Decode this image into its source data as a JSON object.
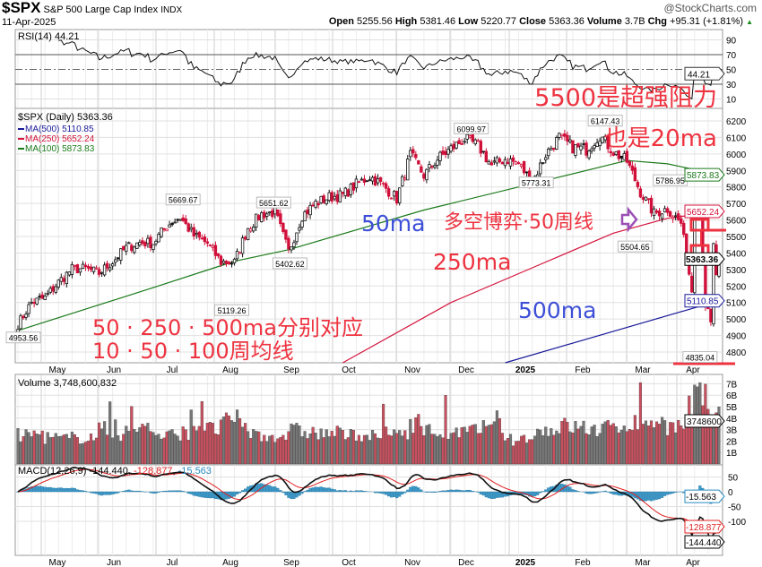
{
  "header": {
    "symbol": "$SPX",
    "name": "S&P 500 Large Cap Index",
    "exchange": "INDX",
    "brand": "@StockCharts.com",
    "date": "11-Apr-2025",
    "open_label": "Open",
    "open": "5255.56",
    "high_label": "High",
    "high": "5381.46",
    "low_label": "Low",
    "low": "5220.77",
    "close_label": "Close",
    "close": "5363.36",
    "volume_label": "Volume",
    "volume": "3.7B",
    "chg_label": "Chg",
    "chg": "+95.31 (+1.81%)"
  },
  "chart_data": {
    "type": "candlestick",
    "title": "$SPX (Daily) 5363.36",
    "x_tick_labels": [
      "May",
      "Jun",
      "Jul",
      "Aug",
      "Sep",
      "Oct",
      "Nov",
      "Dec",
      "2025",
      "Feb",
      "Mar",
      "Apr"
    ],
    "weekly_closes": [
      4967,
      5100,
      5128,
      5223,
      5303,
      5305,
      5278,
      5347,
      5431,
      5464,
      5460,
      5567,
      5615,
      5505,
      5459,
      5346,
      5344,
      5554,
      5634,
      5648,
      5408,
      5626,
      5702,
      5738,
      5751,
      5815,
      5864,
      5808,
      5728,
      5995,
      5870,
      5969,
      6032,
      6090,
      6051,
      5930,
      5970,
      5942,
      5827,
      5997,
      6101,
      6040,
      6026,
      6115,
      6013,
      5955,
      5770,
      5639,
      5668,
      5581,
      5074,
      5363
    ],
    "recent_daily_closes": [
      5611,
      5633,
      5670,
      5396,
      5074,
      5062,
      4982,
      5457,
      5268,
      5363
    ],
    "price_axis": {
      "min": 4800,
      "max": 6200,
      "step": 100,
      "ticks": [
        "6200",
        "6100",
        "6000",
        "5900",
        "5800",
        "5700",
        "5600",
        "5500",
        "5400",
        "5300",
        "5200",
        "5100",
        "5000",
        "4900",
        "4800"
      ]
    },
    "price_labels": [
      {
        "text": "4953.56",
        "value": 4953.56,
        "week": 0.4
      },
      {
        "text": "5669.67",
        "value": 5669.67,
        "week": 12.2
      },
      {
        "text": "5119.26",
        "value": 5119.26,
        "week": 15.8
      },
      {
        "text": "5651.62",
        "value": 5651.62,
        "week": 18.9
      },
      {
        "text": "5402.62",
        "value": 5402.62,
        "week": 20.1
      },
      {
        "text": "6099.97",
        "value": 6099.97,
        "week": 33.5
      },
      {
        "text": "5773.31",
        "value": 5773.31,
        "week": 38.3
      },
      {
        "text": "6147.43",
        "value": 6147.43,
        "week": 43.4
      },
      {
        "text": "5786.95",
        "value": 5786.95,
        "week": 48.2
      },
      {
        "text": "5504.65",
        "value": 5504.65,
        "week": 45.6
      },
      {
        "text": "4835.04",
        "value": 4835.04,
        "week": 50.4
      }
    ],
    "moving_averages": [
      {
        "name": "MA(500)",
        "legend": "MA(500) 5110.85",
        "value": "5110.85",
        "color": "#1a1a9a",
        "points": [
          [
            36,
            4730
          ],
          [
            51.8,
            5110.85
          ]
        ]
      },
      {
        "name": "MA(250)",
        "legend": "MA(250) 5652.24",
        "value": "5652.24",
        "color": "#d4143c",
        "points": [
          [
            24,
            4700
          ],
          [
            32,
            5100
          ],
          [
            38,
            5310
          ],
          [
            44,
            5520
          ],
          [
            48,
            5610
          ],
          [
            51.8,
            5652.24
          ]
        ]
      },
      {
        "name": "MA(100)",
        "legend": "MA(100) 5873.83",
        "value": "5873.83",
        "color": "#1a7a1a",
        "points": [
          [
            0,
            4930
          ],
          [
            10,
            5190
          ],
          [
            16,
            5350
          ],
          [
            20,
            5420
          ],
          [
            30,
            5660
          ],
          [
            40,
            5860
          ],
          [
            45,
            5960
          ],
          [
            48,
            5940
          ],
          [
            51.8,
            5873.83
          ]
        ]
      }
    ],
    "last_price_tag": "5363.36",
    "rsi": {
      "legend": "RSI(14) 44.21",
      "value": "44.21",
      "ticks": [
        "90",
        "70",
        "50",
        "30",
        "10"
      ],
      "overbought": 70,
      "oversold": 30
    },
    "volume": {
      "legend": "Volume 3,748,600,832",
      "tag": "3748600",
      "ticks": [
        "7B",
        "6B",
        "5B",
        "4B",
        "3B",
        "2B",
        "1B"
      ],
      "weekly_billions": [
        2.5,
        2.6,
        2.3,
        2.2,
        2.3,
        2.4,
        3.0,
        2.6,
        2.8,
        3.5,
        2.4,
        2.5,
        2.7,
        3.4,
        3.0,
        3.6,
        3.8,
        2.6,
        2.4,
        2.5,
        2.9,
        2.8,
        2.6,
        2.7,
        2.5,
        2.6,
        2.4,
        2.6,
        2.8,
        3.6,
        2.9,
        2.7,
        2.6,
        2.9,
        2.8,
        3.2,
        2.1,
        2.2,
        2.8,
        3.0,
        3.3,
        3.2,
        3.0,
        3.1,
        3.3,
        3.6,
        3.8,
        3.6,
        3.3,
        3.0,
        5.6,
        4.5
      ]
    },
    "macd": {
      "legend_prefix": "MACD(12,26,9)",
      "macd": "-144.440",
      "signal": "-128.877",
      "histogram": "-15.563",
      "ticks": [
        "50",
        "0",
        "-50",
        "-100"
      ]
    }
  },
  "annotations": {
    "resistance_line1": "5500是超强阻力",
    "resistance_line2": "也是20ma",
    "ma50": "50ma",
    "battle": "多空博弈·50周线",
    "ma250": "250ma",
    "ma500": "500ma",
    "mapping_line1": "50 · 250 · 500ma分别对应",
    "mapping_line2": "10 · 50 · 100周均线",
    "colors": {
      "red": "#ee3340",
      "blue": "#3d4fd8",
      "purple": "#9b4fb5"
    }
  }
}
